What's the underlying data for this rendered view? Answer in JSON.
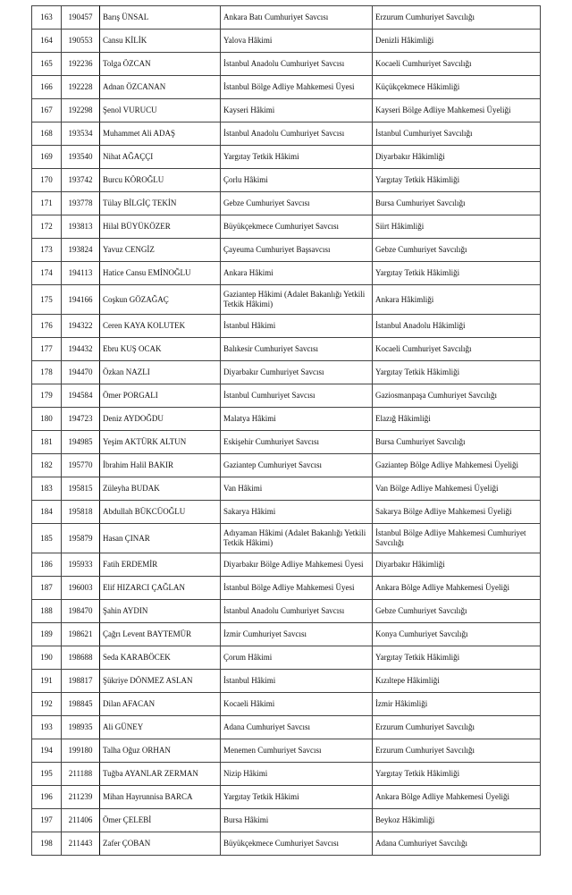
{
  "rows": [
    {
      "no": "163",
      "sicil": "190457",
      "name": "Barış ÜNSAL",
      "from": "Ankara Batı Cumhuriyet Savcısı",
      "to": "Erzurum Cumhuriyet Savcılığı"
    },
    {
      "no": "164",
      "sicil": "190553",
      "name": "Cansu KİLİK",
      "from": "Yalova Hâkimi",
      "to": "Denizli Hâkimliği"
    },
    {
      "no": "165",
      "sicil": "192236",
      "name": "Tolga ÖZCAN",
      "from": "İstanbul Anadolu Cumhuriyet Savcısı",
      "to": "Kocaeli Cumhuriyet Savcılığı"
    },
    {
      "no": "166",
      "sicil": "192228",
      "name": "Adnan ÖZCANAN",
      "from": "İstanbul Bölge Adliye Mahkemesi Üyesi",
      "to": "Küçükçekmece Hâkimliği"
    },
    {
      "no": "167",
      "sicil": "192298",
      "name": "Şenol VURUCU",
      "from": "Kayseri Hâkimi",
      "to": "Kayseri Bölge Adliye Mahkemesi Üyeliği"
    },
    {
      "no": "168",
      "sicil": "193534",
      "name": "Muhammet Ali ADAŞ",
      "from": "İstanbul Anadolu Cumhuriyet Savcısı",
      "to": "İstanbul Cumhuriyet Savcılığı"
    },
    {
      "no": "169",
      "sicil": "193540",
      "name": "Nihat AĞAÇÇI",
      "from": "Yargıtay Tetkik Hâkimi",
      "to": "Diyarbakır Hâkimliği"
    },
    {
      "no": "170",
      "sicil": "193742",
      "name": "Burcu KÖROĞLU",
      "from": "Çorlu Hâkimi",
      "to": "Yargıtay Tetkik Hâkimliği"
    },
    {
      "no": "171",
      "sicil": "193778",
      "name": "Tülay BİLGİÇ TEKİN",
      "from": "Gebze Cumhuriyet Savcısı",
      "to": "Bursa Cumhuriyet Savcılığı"
    },
    {
      "no": "172",
      "sicil": "193813",
      "name": "Hilal BÜYÜKÖZER",
      "from": "Büyükçekmece Cumhuriyet Savcısı",
      "to": "Siirt Hâkimliği"
    },
    {
      "no": "173",
      "sicil": "193824",
      "name": "Yavuz CENGİZ",
      "from": "Çayeuma Cumhuriyet Başsavcısı",
      "to": "Gebze Cumhuriyet Savcılığı"
    },
    {
      "no": "174",
      "sicil": "194113",
      "name": "Hatice Cansu EMİNOĞLU",
      "from": "Ankara Hâkimi",
      "to": "Yargıtay Tetkik Hâkimliği"
    },
    {
      "no": "175",
      "sicil": "194166",
      "name": "Coşkun GÖZAĞAÇ",
      "from": "Gaziantep Hâkimi (Adalet Bakanlığı Yetkili Tetkik Hâkimi)",
      "to": "Ankara Hâkimliği"
    },
    {
      "no": "176",
      "sicil": "194322",
      "name": "Ceren KAYA KOLUTEK",
      "from": "İstanbul Hâkimi",
      "to": "İstanbul Anadolu Hâkimliği"
    },
    {
      "no": "177",
      "sicil": "194432",
      "name": "Ebru KUŞ OCAK",
      "from": "Balıkesir Cumhuriyet Savcısı",
      "to": "Kocaeli Cumhuriyet Savcılığı"
    },
    {
      "no": "178",
      "sicil": "194470",
      "name": "Özkan NAZLI",
      "from": "Diyarbakır Cumhuriyet Savcısı",
      "to": "Yargıtay Tetkik Hâkimliği"
    },
    {
      "no": "179",
      "sicil": "194584",
      "name": "Ömer PORGALI",
      "from": "İstanbul Cumhuriyet Savcısı",
      "to": "Gaziosmanpaşa Cumhuriyet Savcılığı"
    },
    {
      "no": "180",
      "sicil": "194723",
      "name": "Deniz AYDOĞDU",
      "from": "Malatya Hâkimi",
      "to": "Elazığ Hâkimliği"
    },
    {
      "no": "181",
      "sicil": "194985",
      "name": "Yeşim AKTÜRK ALTUN",
      "from": "Eskişehir Cumhuriyet Savcısı",
      "to": "Bursa Cumhuriyet Savcılığı"
    },
    {
      "no": "182",
      "sicil": "195770",
      "name": "İbrahim Halil BAKIR",
      "from": "Gaziantep Cumhuriyet Savcısı",
      "to": "Gaziantep Bölge Adliye Mahkemesi Üyeliği"
    },
    {
      "no": "183",
      "sicil": "195815",
      "name": "Züleyha BUDAK",
      "from": "Van Hâkimi",
      "to": "Van Bölge Adliye Mahkemesi Üyeliği"
    },
    {
      "no": "184",
      "sicil": "195818",
      "name": "Abdullah BÜKCÜOĞLU",
      "from": "Sakarya Hâkimi",
      "to": "Sakarya Bölge Adliye Mahkemesi Üyeliği"
    },
    {
      "no": "185",
      "sicil": "195879",
      "name": "Hasan ÇINAR",
      "from": "Adıyaman Hâkimi (Adalet Bakanlığı Yetkili Tetkik Hâkimi)",
      "to": "İstanbul Bölge Adliye Mahkemesi Cumhuriyet Savcılığı"
    },
    {
      "no": "186",
      "sicil": "195933",
      "name": "Fatih ERDEMİR",
      "from": "Diyarbakır Bölge Adliye Mahkemesi Üyesi",
      "to": "Diyarbakır Hâkimliği"
    },
    {
      "no": "187",
      "sicil": "196003",
      "name": "Elif HIZARCI ÇAĞLAN",
      "from": "İstanbul Bölge Adliye Mahkemesi Üyesi",
      "to": "Ankara Bölge Adliye Mahkemesi Üyeliği"
    },
    {
      "no": "188",
      "sicil": "198470",
      "name": "Şahin AYDIN",
      "from": "İstanbul Anadolu Cumhuriyet Savcısı",
      "to": "Gebze Cumhuriyet Savcılığı"
    },
    {
      "no": "189",
      "sicil": "198621",
      "name": "Çağrı Levent BAYTEMÜR",
      "from": "İzmir Cumhuriyet Savcısı",
      "to": "Konya Cumhuriyet Savcılığı"
    },
    {
      "no": "190",
      "sicil": "198688",
      "name": "Seda KARABÖCEK",
      "from": "Çorum Hâkimi",
      "to": "Yargıtay Tetkik Hâkimliği"
    },
    {
      "no": "191",
      "sicil": "198817",
      "name": "Şükriye DÖNMEZ ASLAN",
      "from": "İstanbul Hâkimi",
      "to": "Kızıltepe Hâkimliği"
    },
    {
      "no": "192",
      "sicil": "198845",
      "name": "Dilan AFACAN",
      "from": "Kocaeli Hâkimi",
      "to": "İzmir Hâkimliği"
    },
    {
      "no": "193",
      "sicil": "198935",
      "name": "Ali GÜNEY",
      "from": "Adana Cumhuriyet Savcısı",
      "to": "Erzurum Cumhuriyet Savcılığı"
    },
    {
      "no": "194",
      "sicil": "199180",
      "name": "Talha Oğuz ORHAN",
      "from": "Menemen Cumhuriyet Savcısı",
      "to": "Erzurum Cumhuriyet Savcılığı"
    },
    {
      "no": "195",
      "sicil": "211188",
      "name": "Tuğba AYANLAR ZERMAN",
      "from": "Nizip Hâkimi",
      "to": "Yargıtay Tetkik Hâkimliği"
    },
    {
      "no": "196",
      "sicil": "211239",
      "name": "Mihan Hayrunnisa BARCA",
      "from": "Yargıtay Tetkik Hâkimi",
      "to": "Ankara Bölge Adliye Mahkemesi Üyeliği"
    },
    {
      "no": "197",
      "sicil": "211406",
      "name": "Ömer ÇELEBİ",
      "from": "Bursa Hâkimi",
      "to": "Beykoz Hâkimliği"
    },
    {
      "no": "198",
      "sicil": "211443",
      "name": "Zafer ÇOBAN",
      "from": "Büyükçekmece Cumhuriyet Savcısı",
      "to": "Adana Cumhuriyet Savcılığı"
    }
  ]
}
